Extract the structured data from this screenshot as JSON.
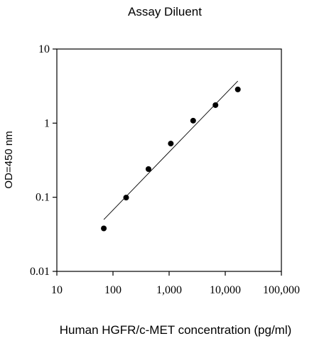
{
  "chart_data": {
    "type": "scatter",
    "title": "Assay Diluent",
    "xlabel": "Human HGFR/c-MET concentration (pg/ml)",
    "ylabel": "OD=450 nm",
    "x_scale": "log",
    "y_scale": "log",
    "xlim": [
      10,
      100000
    ],
    "ylim": [
      0.01,
      10
    ],
    "x_ticks": [
      10,
      100,
      1000,
      10000,
      100000
    ],
    "x_tick_labels": [
      "10",
      "100",
      "1,000",
      "10,000",
      "100,000"
    ],
    "y_ticks": [
      0.01,
      0.1,
      1,
      10
    ],
    "y_tick_labels": [
      "0.01",
      "0.1",
      "1",
      "10"
    ],
    "grid": false,
    "series": [
      {
        "x": [
          68.6,
          171.5,
          428.7,
          1071.7,
          2679.3,
          6698.2,
          16745.6
        ],
        "y": [
          0.038,
          0.099,
          0.24,
          0.53,
          1.08,
          1.75,
          2.85
        ],
        "marker": "filled-circle",
        "color": "#000000"
      }
    ],
    "fit_line": {
      "x": [
        68.6,
        16745.6
      ],
      "y": [
        0.05,
        3.7
      ],
      "color": "#000000"
    }
  }
}
